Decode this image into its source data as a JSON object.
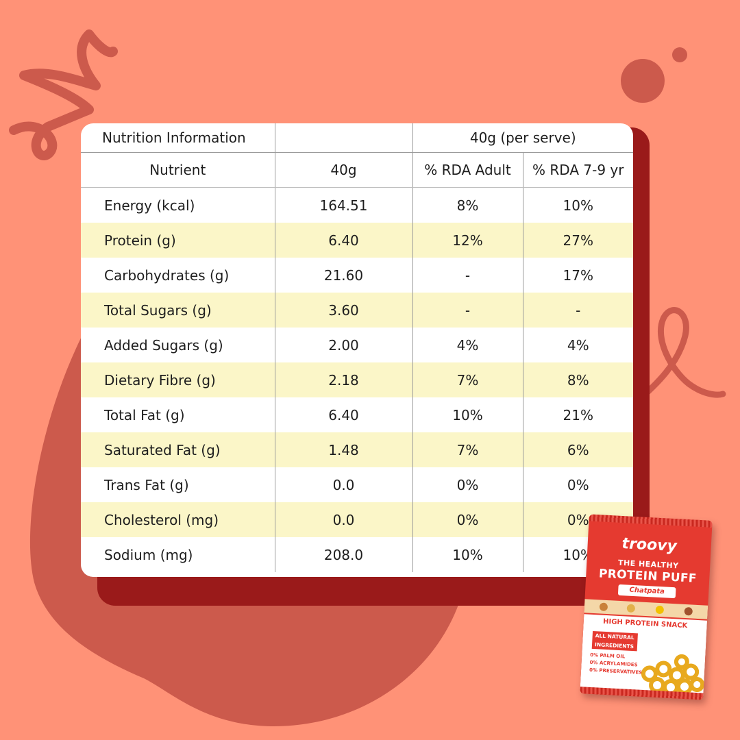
{
  "colors": {
    "background": "#FF9277",
    "decor": "#CC5A4C",
    "shadow_card": "#9A1A1A",
    "highlight_row": "#FBF6C8",
    "pack_red": "#E53A30"
  },
  "table": {
    "title": "Nutrition Information",
    "per_serve": "40g (per serve)",
    "headers": [
      "Nutrient",
      "40g",
      "% RDA Adult",
      "% RDA 7-9 yr"
    ],
    "rows": [
      {
        "nutrient": "Energy (kcal)",
        "amount": "164.51",
        "rda_adult": "8%",
        "rda_kids": "10%"
      },
      {
        "nutrient": "Protein (g)",
        "amount": "6.40",
        "rda_adult": "12%",
        "rda_kids": "27%"
      },
      {
        "nutrient": "Carbohydrates (g)",
        "amount": "21.60",
        "rda_adult": "-",
        "rda_kids": "17%"
      },
      {
        "nutrient": "Total Sugars (g)",
        "amount": "3.60",
        "rda_adult": "-",
        "rda_kids": "-"
      },
      {
        "nutrient": "Added Sugars (g)",
        "amount": "2.00",
        "rda_adult": "4%",
        "rda_kids": "4%"
      },
      {
        "nutrient": "Dietary Fibre (g)",
        "amount": "2.18",
        "rda_adult": "7%",
        "rda_kids": "8%"
      },
      {
        "nutrient": "Total Fat (g)",
        "amount": "6.40",
        "rda_adult": "10%",
        "rda_kids": "21%"
      },
      {
        "nutrient": "Saturated Fat (g)",
        "amount": "1.48",
        "rda_adult": "7%",
        "rda_kids": "6%"
      },
      {
        "nutrient": "Trans Fat (g)",
        "amount": "0.0",
        "rda_adult": "0%",
        "rda_kids": "0%"
      },
      {
        "nutrient": "Cholesterol (mg)",
        "amount": "0.0",
        "rda_adult": "0%",
        "rda_kids": "0%"
      },
      {
        "nutrient": "Sodium (mg)",
        "amount": "208.0",
        "rda_adult": "10%",
        "rda_kids": "10%"
      }
    ]
  },
  "product": {
    "brand": "troovy",
    "tagline": "THE HEALTHY",
    "name": "PROTEIN PUFF",
    "flavor": "Chatpata",
    "claim": "HIGH PROTEIN SNACK",
    "badge": "ALL NATURAL INGREDIENTS",
    "zero_claims": [
      "0% PALM OIL",
      "0% ACRYLAMIDES",
      "0% PRESERVATIVES"
    ]
  }
}
